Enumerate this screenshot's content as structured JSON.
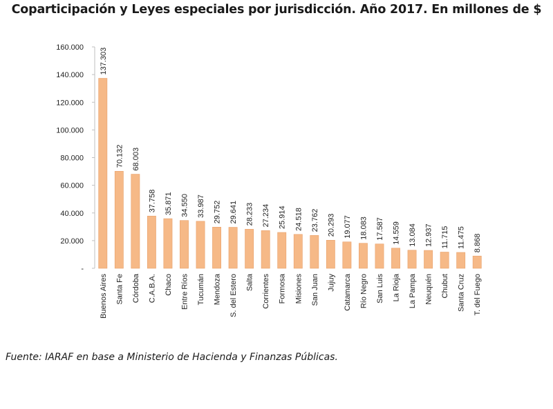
{
  "chart_data": {
    "type": "bar",
    "title": "Coparticipación y Leyes especiales por jurisdicción. Año 2017. En millones de $",
    "xlabel": "",
    "ylabel": "",
    "ylim": [
      0,
      160000
    ],
    "yticks": [
      "-",
      "20.000",
      "40.000",
      "60.000",
      "80.000",
      "100.000",
      "120.000",
      "140.000",
      "160.000"
    ],
    "ytick_values": [
      0,
      20000,
      40000,
      60000,
      80000,
      100000,
      120000,
      140000,
      160000
    ],
    "categories": [
      "Buenos Aires",
      "Santa Fe",
      "Córdoba",
      "C.A.B.A.",
      "Chaco",
      "Entre Ríos",
      "Tucumán",
      "Mendoza",
      "S. del Estero",
      "Salta",
      "Corrientes",
      "Formosa",
      "Misiones",
      "San Juan",
      "Jujuy",
      "Catamarca",
      "Río Negro",
      "San Luis",
      "La Rioja",
      "La Pampa",
      "Neuquén",
      "Chubut",
      "Santa Cruz",
      "T. del Fuego"
    ],
    "values": [
      137303,
      70132,
      68003,
      37758,
      35871,
      34550,
      33987,
      29752,
      29641,
      28233,
      27234,
      25914,
      24518,
      23762,
      20293,
      19077,
      18083,
      17587,
      14559,
      13084,
      12937,
      11715,
      11475,
      8868
    ],
    "value_labels": [
      "137.303",
      "70.132",
      "68.003",
      "37.758",
      "35.871",
      "34.550",
      "33.987",
      "29.752",
      "29.641",
      "28.233",
      "27.234",
      "25.914",
      "24.518",
      "23.762",
      "20.293",
      "19.077",
      "18.083",
      "17.587",
      "14.559",
      "13.084",
      "12.937",
      "11.715",
      "11.475",
      "8.868"
    ],
    "bar_color": "#f6b987",
    "bar_edge_color": "#e8a06a",
    "grid": false
  },
  "source": "Fuente: IARAF en base a Ministerio de Hacienda y Finanzas Públicas."
}
